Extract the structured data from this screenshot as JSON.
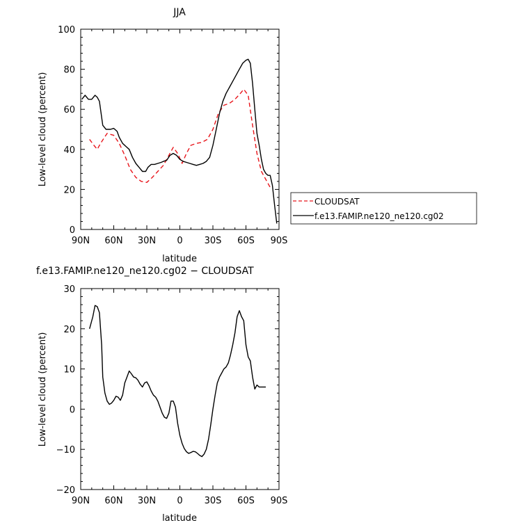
{
  "chart_data": [
    {
      "type": "line",
      "title": "JJA",
      "xlabel": "latitude",
      "ylabel": "Low-level cloud (percent)",
      "xlim": [
        90,
        -90
      ],
      "ylim": [
        0,
        100
      ],
      "x_ticks": [
        90,
        60,
        30,
        0,
        -30,
        -60,
        -90
      ],
      "x_tick_labels": [
        "90N",
        "60N",
        "30N",
        "0",
        "30S",
        "60S",
        "90S"
      ],
      "y_ticks": [
        0,
        20,
        40,
        60,
        80,
        100
      ],
      "y_tick_labels": [
        "0",
        "20",
        "40",
        "60",
        "80",
        "100"
      ],
      "legend_position": "right",
      "series": [
        {
          "name": "CLOUDSAT",
          "color": "#e8141a",
          "dash": "dashed",
          "x": [
            82,
            78,
            75,
            72,
            66,
            60,
            55,
            50,
            45,
            40,
            35,
            30,
            25,
            20,
            15,
            10,
            6,
            2,
            -2,
            -6,
            -10,
            -15,
            -20,
            -25,
            -30,
            -35,
            -40,
            -45,
            -50,
            -55,
            -58,
            -62,
            -66,
            -70,
            -74,
            -78,
            -82
          ],
          "values": [
            45,
            42,
            40,
            43,
            48,
            47,
            43,
            37,
            30,
            26,
            24,
            23.5,
            26,
            29,
            32,
            37,
            41,
            38,
            33,
            38,
            42,
            43,
            43.5,
            45,
            50,
            58,
            62,
            63,
            65,
            68,
            70,
            67,
            52,
            38,
            29,
            25,
            21
          ]
        },
        {
          "name": "f.e13.FAMIP.ne120_ne120.cg02",
          "color": "#000000",
          "dash": "solid",
          "x": [
            89,
            86,
            83,
            80,
            77,
            75,
            73,
            70,
            67,
            63,
            60,
            57,
            55,
            52,
            49,
            46,
            43,
            40,
            37,
            34,
            31,
            29,
            26,
            23,
            20,
            17,
            15,
            12,
            9,
            6,
            3,
            0,
            -3,
            -6,
            -9,
            -12,
            -15,
            -18,
            -21,
            -24,
            -27,
            -30,
            -33,
            -36,
            -39,
            -42,
            -45,
            -48,
            -51,
            -54,
            -57,
            -60,
            -62,
            -64,
            -66,
            -68,
            -70,
            -72,
            -74,
            -76,
            -78,
            -80,
            -82,
            -84,
            -86,
            -88
          ],
          "values": [
            65,
            67,
            65,
            65,
            67,
            66,
            64,
            52,
            50,
            50,
            50.5,
            49,
            46,
            43,
            41.5,
            40,
            36,
            33,
            31,
            29,
            29,
            31,
            32.5,
            32.5,
            33,
            33.5,
            34,
            34.5,
            37,
            38,
            37,
            35,
            34,
            33.5,
            33,
            32.5,
            32,
            32.5,
            33,
            34,
            36,
            42,
            50,
            58,
            64,
            68,
            71,
            74,
            77,
            80,
            83,
            84.5,
            85,
            83,
            73,
            60,
            48,
            42,
            35,
            30,
            28,
            27,
            27,
            22,
            12,
            3
          ]
        }
      ]
    },
    {
      "type": "line",
      "title": "f.e13.FAMIP.ne120_ne120.cg02 − CLOUDSAT",
      "xlabel": "latitude",
      "ylabel": "Low-level cloud (percent)",
      "xlim": [
        90,
        -90
      ],
      "ylim": [
        -20,
        30
      ],
      "x_ticks": [
        90,
        60,
        30,
        0,
        -30,
        -60,
        -90
      ],
      "x_tick_labels": [
        "90N",
        "60N",
        "30N",
        "0",
        "30S",
        "60S",
        "90S"
      ],
      "y_ticks": [
        -20,
        -10,
        0,
        10,
        20,
        30
      ],
      "y_tick_labels": [
        "−20",
        "−10",
        "0",
        "10",
        "20",
        "30"
      ],
      "series": [
        {
          "color": "#000000",
          "dash": "solid",
          "x": [
            82,
            79,
            77,
            75,
            73,
            71,
            70,
            68,
            66,
            64,
            62,
            60,
            58,
            56,
            54,
            52,
            50,
            48,
            46,
            44,
            42,
            40,
            38,
            36,
            34,
            32,
            30,
            28,
            26,
            24,
            22,
            20,
            18,
            16,
            14,
            12,
            10,
            8,
            6,
            4,
            2,
            0,
            -2,
            -4,
            -6,
            -8,
            -10,
            -12,
            -14,
            -16,
            -18,
            -20,
            -22,
            -24,
            -26,
            -28,
            -30,
            -32,
            -34,
            -36,
            -38,
            -40,
            -42,
            -44,
            -46,
            -48,
            -50,
            -52,
            -54,
            -56,
            -58,
            -60,
            -62,
            -64,
            -66,
            -68,
            -70,
            -72,
            -74,
            -76,
            -78
          ],
          "values": [
            20,
            23,
            25.8,
            25.5,
            24,
            16,
            8,
            4,
            2,
            1.2,
            1.5,
            2.2,
            3.2,
            3,
            2.2,
            3.5,
            6.5,
            8,
            9.5,
            8.8,
            8,
            7.8,
            7.2,
            6.2,
            5.5,
            6.5,
            6.8,
            5.8,
            4.5,
            3.5,
            3,
            2,
            0.5,
            -1,
            -2,
            -2.3,
            -1,
            2,
            2,
            0.5,
            -3.5,
            -6.5,
            -8.5,
            -9.8,
            -10.6,
            -11,
            -10.8,
            -10.5,
            -10.6,
            -11,
            -11.5,
            -11.8,
            -11.2,
            -10,
            -7.5,
            -4,
            0,
            3.5,
            6.5,
            8,
            9,
            10,
            10.5,
            11.5,
            13.5,
            16,
            19,
            23,
            24.5,
            23,
            22,
            16,
            13,
            12,
            8,
            5,
            6,
            5.5,
            5.5,
            5.5,
            5.5
          ]
        }
      ]
    }
  ]
}
